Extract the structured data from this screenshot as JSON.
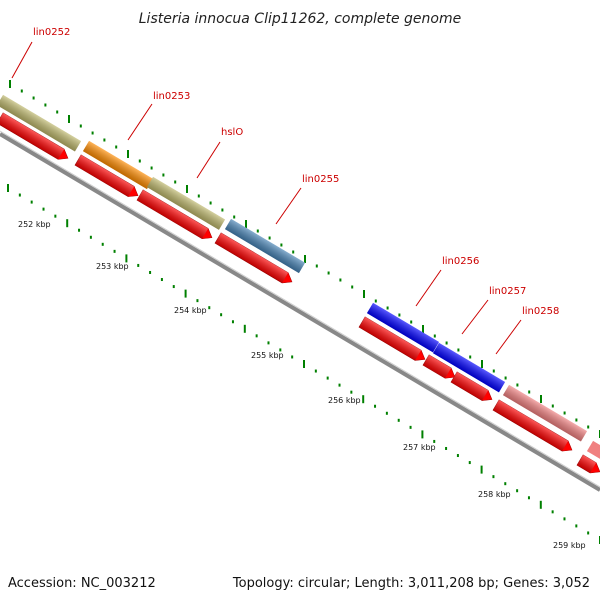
{
  "title": "Listeria innocua Clip11262, complete genome",
  "footer": {
    "accession": "Accession: NC_003212",
    "summary": "Topology: circular; Length: 3,011,208 bp; Genes: 3,052"
  },
  "kbp_labels": [
    "252 kbp",
    "253 kbp",
    "254 kbp",
    "255 kbp",
    "256 kbp",
    "257 kbp",
    "258 kbp",
    "259 kbp"
  ],
  "genes": [
    {
      "name": "lin0252",
      "color": "#bdb76b"
    },
    {
      "name": "lin0253",
      "color": "#ff8c00"
    },
    {
      "name": "hslO",
      "color": "#bdb76b"
    },
    {
      "name": "lin0255",
      "color": "#4682b4"
    },
    {
      "name": "lin0256",
      "color": "#0000ff"
    },
    {
      "name": "lin0257",
      "color": "#0000ff"
    },
    {
      "name": "lin0258",
      "color": "#f08080"
    }
  ],
  "colors": {
    "cds": "#ff0000",
    "backbone": "#888888",
    "ticks": "#008000",
    "label": "#cc0000"
  }
}
